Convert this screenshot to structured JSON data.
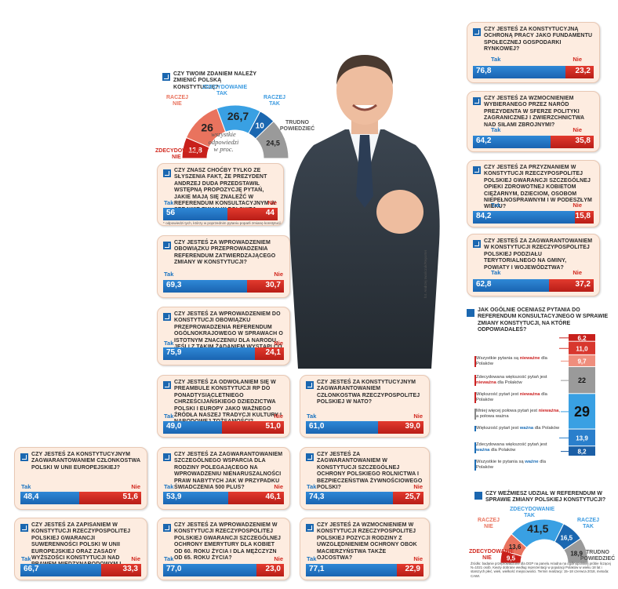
{
  "semi_chart_1": {
    "question": "Czy Twoim zdaniem należy zmienić polską konstytucję?",
    "labels": [
      "Zdecydowanie nie",
      "Raczej nie",
      "Zdecydowanie tak",
      "Raczej tak",
      "Trudno powiedzieć"
    ],
    "inner_values": [
      "12,8",
      "26",
      "26,7",
      "10",
      "24,5"
    ],
    "center_note": "wszystkie odpowiedzi w proc."
  },
  "semi_chart_2": {
    "question": "Czy weźmiesz udział w referendum w sprawie zmiany polskiej konstytucji?",
    "labels": [
      "Zdecydowanie nie",
      "Raczej nie",
      "Zdecydowanie tak",
      "Raczej tak",
      "Trudno powiedzieć"
    ],
    "inner_values": [
      "9,5",
      "13,6",
      "41,5",
      "16,5",
      "18,9"
    ]
  },
  "cards": [
    {
      "question": "Czy znasz choćby tylko ze słyszenia fakt, że prezydent Andrzej Duda przedstawił wstępną propozycję pytań, jakie mają się znaleźć w referendum konsultacyjnym w sprawie zmian w polskiej konstytucji?*",
      "yes_label": "Tak",
      "no_label": "Nie",
      "yes": "56",
      "no": "44",
      "note": "* odpowiedzi tych, którzy w poprzednim pytaniu poparli zmianę konstytucji"
    },
    {
      "question": "Czy jesteś za wprowadzeniem obowiązku przeprowadzenia referendum zatwierdzającego zmiany w konstytucji?",
      "yes_label": "Tak",
      "no_label": "Nie",
      "yes": "69,3",
      "no": "30,7"
    },
    {
      "question": "Czy jesteś za wprowadzeniem do konstytucji obowiązku przeprowadzenia referendum ogólnokrajowego w sprawach o istotnym znaczeniu dla Narodu, jeśli z takim żądaniem wystąpi co najmniej jeden milion obywateli?",
      "yes_label": "Tak",
      "no_label": "Nie",
      "yes": "75,9",
      "no": "24,1"
    },
    {
      "question": "Czy jesteś za odwołaniem się w preambule Konstytucji RP do ponadtysiącletniego chrześcijańskiego dziedzictwa Polski i Europy jako ważnego źródła naszej tradycji kultury i narodowej tożsamości?",
      "yes_label": "Tak",
      "no_label": "Nie",
      "yes": "49,0",
      "no": "51,0"
    },
    {
      "question": "Czy jesteś za konstytucyjnym zagwarantowaniem członkostwa Rzeczypospolitej Polskiej w NATO?",
      "yes_label": "Tak",
      "no_label": "Nie",
      "yes": "61,0",
      "no": "39,0"
    },
    {
      "question": "Czy jesteś za konstytucyjnym zagwarantowaniem członkostwa Polski w Unii Europejskiej?",
      "yes_label": "Tak",
      "no_label": "Nie",
      "yes": "48,4",
      "no": "51,6"
    },
    {
      "question": "Czy jesteś za zagwarantowaniem szczególnego wsparcia dla rodziny polegającego na wprowadzeniu nienaruszalności praw nabytych jak w przypadku świadczenia 500 plus?",
      "yes_label": "Tak",
      "no_label": "Nie",
      "yes": "53,9",
      "no": "46,1"
    },
    {
      "question": "Czy jesteś za zagwarantowaniem w konstytucji szczególnej ochrony polskiego rolnictwa i bezpieczeństwa żywnościowego Polski?",
      "yes_label": "Tak",
      "no_label": "Nie",
      "yes": "74,3",
      "no": "25,7"
    },
    {
      "question": "Czy jesteś za zapisaniem w Konstytucji Rzeczypospolitej Polskiej gwarancji suwerenności Polski w Unii Europejskiej oraz zasady wyższości Konstytucji nad prawem międzynarodowym i europejskim?",
      "yes_label": "Tak",
      "no_label": "Nie",
      "yes": "66,7",
      "no": "33,3"
    },
    {
      "question": "Czy jesteś za wprowadzeniem w Konstytucji Rzeczypospolitej Polskiej gwarancji szczególnej ochrony emerytury dla kobiet od 60. roku życia i dla mężczyzn od 65. roku życia?",
      "yes_label": "Tak",
      "no_label": "Nie",
      "yes": "77,0",
      "no": "23,0"
    },
    {
      "question": "Czy jesteś za wzmocnieniem w Konstytucji Rzeczypospolitej Polskiej pozycji rodziny z uwzględnieniem ochrony obok macierzyństwa także ojcostwa?",
      "yes_label": "Tak",
      "no_label": "Nie",
      "yes": "77,1",
      "no": "22,9"
    },
    {
      "question": "Czy jesteś za konstytucyjną ochroną pracy jako fundamentu społecznej gospodarki rynkowej?",
      "yes_label": "Tak",
      "no_label": "Nie",
      "yes": "76,8",
      "no": "23,2"
    },
    {
      "question": "Czy jesteś za wzmocnieniem wybieranego przez naród prezydenta w sferze polityki zagranicznej i zwierzchnictwa nad Siłami Zbrojnymi?",
      "yes_label": "Tak",
      "no_label": "Nie",
      "yes": "64,2",
      "no": "35,8"
    },
    {
      "question": "Czy jesteś za przyznaniem w Konstytucji Rzeczypospolitej Polskiej gwarancji szczególnej opieki zdrowotnej kobietom ciężarnym, dzieciom, osobom niepełnosprawnym i w podeszłym wieku?",
      "yes_label": "Tak",
      "no_label": "Nie",
      "yes": "84,2",
      "no": "15,8"
    },
    {
      "question": "Czy jesteś za zagwarantowaniem w Konstytucji Rzeczypospolitej Polskiej podziału terytorialnego na gminy, powiaty i województwa?",
      "yes_label": "Tak",
      "no_label": "Nie",
      "yes": "62,8",
      "no": "37,2"
    }
  ],
  "assessment": {
    "question": "Jak ogólnie oceniasz pytania do referendum konsultacyjnego w sprawie zmiany konstytucji, na które odpowiadałeś?",
    "rows": [
      {
        "a": "Wszystkie pytania są ",
        "b": "nieważne",
        "c": " dla Polaków",
        "value": "6,2"
      },
      {
        "a": "Zdecydowana większość pytań jest ",
        "b": "nieważna",
        "c": " dla Polaków",
        "value": "11,0"
      },
      {
        "a": "Większość pytań jest ",
        "b": "nieważna",
        "c": " dla Polaków",
        "value": "9,7"
      },
      {
        "a": "Mniej więcej połowa pytań jest ",
        "b": "nieważna",
        "c": ", a połowa ważna",
        "value": "22"
      },
      {
        "a": "Większość pytań jest ",
        "b": "ważna",
        "c": " dla Polaków",
        "value": "29"
      },
      {
        "a": "Zdecydowana większość pytań jest ",
        "b": "ważna",
        "c": " dla Polaków",
        "value": "13,9"
      },
      {
        "a": "Wszystkie te pytania są ",
        "b": "ważne",
        "c": " dla Polaków",
        "value": "8,2"
      }
    ]
  },
  "photo_credit": "fot. Andrzej Iwańczuk/Reporter",
  "footer": "Źródło: badanie przeprowadzone dla DGP na panelu Ariadna na ogólnopolskiej próbie liczącej N=1021 osób. Kwoty dobrane według reprezentacji w populacji Polaków w wieku 18 lat i starszych płeć, wiek, wielkość miejscowości. Termin realizacji: 15–18 czerwca 2018, metoda: CAWI.",
  "chart_data": [
    {
      "type": "pie",
      "title": "Czy Twoim zdaniem należy zmienić polską konstytucję?",
      "categories": [
        "Zdecydowanie nie",
        "Raczej nie",
        "Zdecydowanie tak",
        "Raczej tak",
        "Trudno powiedzieć"
      ],
      "values": [
        12.8,
        26,
        26.7,
        10,
        24.5
      ]
    },
    {
      "type": "pie",
      "title": "Czy weźmiesz udział w referendum w sprawie zmiany polskiej konstytucji?",
      "categories": [
        "Zdecydowanie nie",
        "Raczej nie",
        "Zdecydowanie tak",
        "Raczej tak",
        "Trudno powiedzieć"
      ],
      "values": [
        9.5,
        13.6,
        41.5,
        16.5,
        18.9
      ]
    },
    {
      "type": "bar",
      "categories": [
        "Tak",
        "Nie"
      ],
      "series": [
        {
          "values": [
            56,
            44
          ]
        },
        {
          "values": [
            69.3,
            30.7
          ]
        },
        {
          "values": [
            75.9,
            24.1
          ]
        },
        {
          "values": [
            49.0,
            51.0
          ]
        },
        {
          "values": [
            61.0,
            39.0
          ]
        },
        {
          "values": [
            48.4,
            51.6
          ]
        },
        {
          "values": [
            53.9,
            46.1
          ]
        },
        {
          "values": [
            74.3,
            25.7
          ]
        },
        {
          "values": [
            66.7,
            33.3
          ]
        },
        {
          "values": [
            77.0,
            23.0
          ]
        },
        {
          "values": [
            77.1,
            22.9
          ]
        },
        {
          "values": [
            76.8,
            23.2
          ]
        },
        {
          "values": [
            64.2,
            35.8
          ]
        },
        {
          "values": [
            84.2,
            15.8
          ]
        },
        {
          "values": [
            62.8,
            37.2
          ]
        }
      ]
    },
    {
      "type": "bar",
      "title": "Jak ogólnie oceniasz pytania do referendum konsultacyjnego w sprawie zmiany konstytucji, na które odpowiadałeś?",
      "categories": [
        "Wszystkie pytania są nieważne dla Polaków",
        "Zdecydowana większość pytań jest nieważna dla Polaków",
        "Większość pytań jest nieważna dla Polaków",
        "Mniej więcej połowa pytań jest nieważna, a połowa ważna",
        "Większość pytań jest ważna dla Polaków",
        "Zdecydowana większość pytań jest ważna dla Polaków",
        "Wszystkie te pytania są ważne dla Polaków"
      ],
      "values": [
        6.2,
        11.0,
        9.7,
        22,
        29,
        13.9,
        8.2
      ]
    }
  ]
}
